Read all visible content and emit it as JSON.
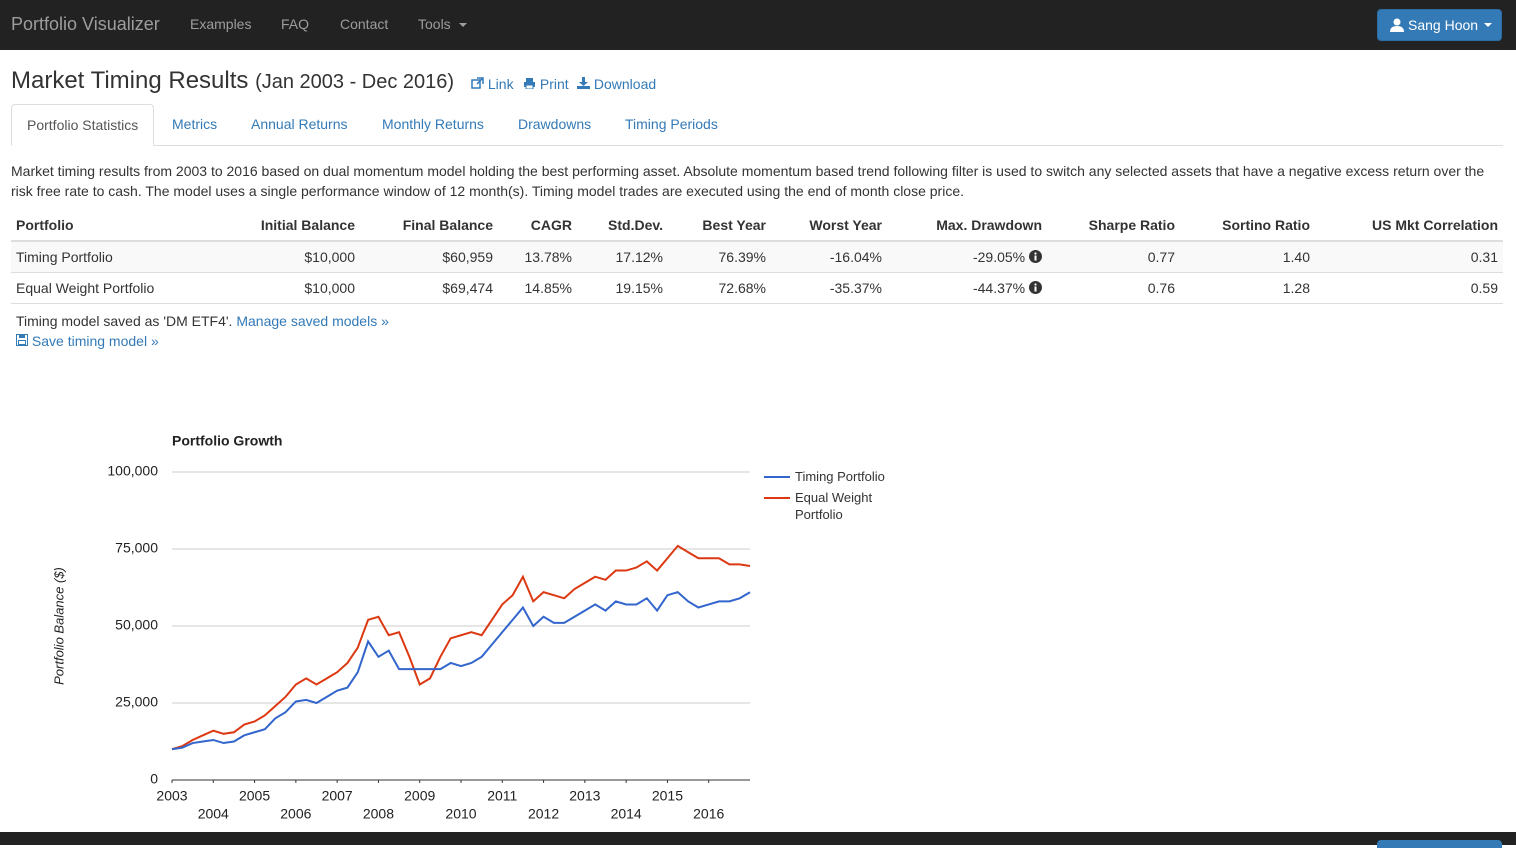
{
  "nav": {
    "brand": "Portfolio Visualizer",
    "links": [
      "Examples",
      "FAQ",
      "Contact",
      "Tools"
    ],
    "user": "Sang Hoon"
  },
  "header": {
    "title": "Market Timing Results",
    "subtitle": "(Jan 2003 - Dec 2016)",
    "actions": [
      "Link",
      "Print",
      "Download"
    ]
  },
  "tabs": [
    "Portfolio Statistics",
    "Metrics",
    "Annual Returns",
    "Monthly Returns",
    "Drawdowns",
    "Timing Periods"
  ],
  "description": "Market timing results from 2003 to 2016 based on dual momentum model holding the best performing asset. Absolute momentum based trend following filter is used to switch any selected assets that have a negative excess return over the risk free rate to cash. The model uses a single performance window of 12 month(s). Timing model trades are executed using the end of month close price.",
  "table": {
    "columns": [
      "Portfolio",
      "Initial Balance",
      "Final Balance",
      "CAGR",
      "Std.Dev.",
      "Best Year",
      "Worst Year",
      "Max. Drawdown",
      "Sharpe Ratio",
      "Sortino Ratio",
      "US Mkt Correlation"
    ],
    "rows": [
      [
        "Timing Portfolio",
        "$10,000",
        "$60,959",
        "13.78%",
        "17.12%",
        "76.39%",
        "-16.04%",
        "-29.05%",
        "0.77",
        "1.40",
        "0.31"
      ],
      [
        "Equal Weight Portfolio",
        "$10,000",
        "$69,474",
        "14.85%",
        "19.15%",
        "72.68%",
        "-35.37%",
        "-44.37%",
        "0.76",
        "1.28",
        "0.59"
      ]
    ]
  },
  "notes": {
    "saved": "Timing model saved as 'DM ETF4'.",
    "manage": "Manage saved models »",
    "save": "Save timing model »"
  },
  "chart_data": {
    "type": "line",
    "title": "Portfolio Growth",
    "y_label": "Portfolio Balance ($)",
    "x": [
      2003,
      2003.25,
      2003.5,
      2003.75,
      2004,
      2004.25,
      2004.5,
      2004.75,
      2005,
      2005.25,
      2005.5,
      2005.75,
      2006,
      2006.25,
      2006.5,
      2006.75,
      2007,
      2007.25,
      2007.5,
      2007.75,
      2008,
      2008.25,
      2008.5,
      2008.75,
      2009,
      2009.25,
      2009.5,
      2009.75,
      2010,
      2010.25,
      2010.5,
      2010.75,
      2011,
      2011.25,
      2011.5,
      2011.75,
      2012,
      2012.25,
      2012.5,
      2012.75,
      2013,
      2013.25,
      2013.5,
      2013.75,
      2014,
      2014.25,
      2014.5,
      2014.75,
      2015,
      2015.25,
      2015.5,
      2015.75,
      2016,
      2016.25,
      2016.5,
      2016.75,
      2017
    ],
    "series": [
      {
        "name": "Timing Portfolio",
        "color": "#3366cc",
        "values": [
          10000,
          10500,
          12000,
          12500,
          13000,
          12000,
          12500,
          14500,
          15500,
          16500,
          20000,
          22000,
          25500,
          26000,
          25000,
          27000,
          29000,
          30000,
          35000,
          45000,
          40000,
          42000,
          36000,
          36000,
          36000,
          36000,
          36000,
          38000,
          37000,
          38000,
          40000,
          44000,
          48000,
          52000,
          56000,
          50000,
          53000,
          51000,
          51000,
          53000,
          55000,
          57000,
          55000,
          58000,
          57000,
          57000,
          59000,
          55000,
          60000,
          61000,
          58000,
          56000,
          57000,
          58000,
          58000,
          59000,
          60959
        ]
      },
      {
        "name": "Equal Weight Portfolio",
        "color": "#dc3912",
        "values": [
          10000,
          11000,
          13000,
          14500,
          16000,
          15000,
          15500,
          18000,
          19000,
          21000,
          24000,
          27000,
          31000,
          33000,
          31000,
          33000,
          35000,
          38000,
          43000,
          52000,
          53000,
          47000,
          48000,
          40000,
          31000,
          33000,
          40000,
          46000,
          47000,
          48000,
          47000,
          52000,
          57000,
          60000,
          66000,
          58000,
          61000,
          60000,
          59000,
          62000,
          64000,
          66000,
          65000,
          68000,
          68000,
          69000,
          71000,
          68000,
          72000,
          76000,
          74000,
          72000,
          72000,
          72000,
          70000,
          70000,
          69474
        ]
      }
    ],
    "xlim": [
      2003,
      2017
    ],
    "xticks": [
      2003,
      2004,
      2005,
      2006,
      2007,
      2008,
      2009,
      2010,
      2011,
      2012,
      2013,
      2014,
      2015,
      2016
    ],
    "ylim": [
      0,
      100000
    ],
    "yticks": [
      0,
      {
        "value": 25000,
        "label": "25,000"
      },
      {
        "value": 50000,
        "label": "50,000"
      },
      {
        "value": 75000,
        "label": "75,000"
      },
      {
        "value": 100000,
        "label": "100,000"
      }
    ],
    "grid": true,
    "legend": "right"
  }
}
